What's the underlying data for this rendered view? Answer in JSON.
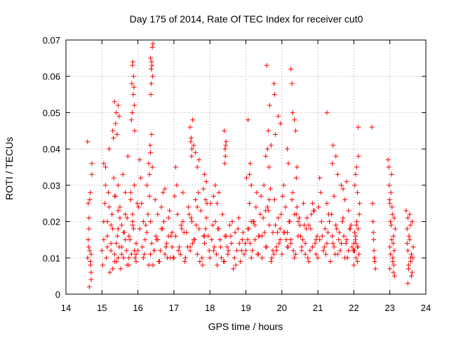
{
  "chart_data": {
    "type": "scatter",
    "title": "Day 175 of 2014, Rate Of TEC Index for receiver cut0",
    "xlabel": "GPS time / hours",
    "ylabel": "ROTI / TECUs",
    "xlim": [
      14,
      24
    ],
    "ylim": [
      0,
      0.07
    ],
    "xticks": [
      "14",
      "15",
      "16",
      "17",
      "18",
      "19",
      "20",
      "21",
      "22",
      "23",
      "24"
    ],
    "yticks": [
      "0",
      "0.01",
      "0.02",
      "0.03",
      "0.04",
      "0.05",
      "0.06",
      "0.07"
    ],
    "grid": true,
    "legend": "none",
    "marker": "plus",
    "color": "#ff0000",
    "series": [
      {
        "name": "ROTI",
        "x": [
          14.6,
          14.62,
          14.64,
          14.66,
          14.68,
          14.7,
          14.72,
          14.62,
          14.66,
          14.7,
          14.64,
          14.68,
          14.6,
          14.7,
          14.65,
          14.72,
          14.68,
          14.63,
          15.0,
          15.02,
          15.05,
          15.08,
          15.1,
          15.12,
          15.15,
          15.18,
          15.2,
          15.22,
          15.25,
          15.28,
          15.3,
          15.33,
          15.35,
          15.38,
          15.4,
          15.43,
          15.45,
          15.48,
          15.5,
          15.52,
          15.55,
          15.58,
          15.6,
          15.62,
          15.65,
          15.68,
          15.7,
          15.72,
          15.75,
          15.78,
          15.8,
          15.82,
          15.85,
          15.88,
          15.9,
          15.92,
          15.95,
          15.98,
          15.05,
          15.15,
          15.25,
          15.35,
          15.45,
          15.55,
          15.65,
          15.75,
          15.85,
          15.95,
          15.1,
          15.2,
          15.3,
          15.4,
          15.5,
          15.6,
          15.7,
          15.8,
          15.9,
          15.05,
          15.25,
          15.45,
          15.65,
          15.85,
          15.35,
          15.55,
          15.75,
          15.95,
          15.15,
          15.45,
          15.3,
          15.35,
          15.4,
          15.32,
          15.38,
          15.42,
          15.45,
          15.48,
          15.83,
          15.85,
          15.87,
          15.88,
          15.9,
          15.86,
          15.84,
          15.89,
          15.91,
          15.82,
          16.0,
          16.05,
          16.1,
          16.15,
          16.2,
          16.25,
          16.3,
          16.35,
          16.4,
          16.45,
          16.5,
          16.55,
          16.6,
          16.65,
          16.7,
          16.75,
          16.8,
          16.85,
          16.9,
          16.95,
          16.02,
          16.12,
          16.22,
          16.32,
          16.42,
          16.52,
          16.62,
          16.72,
          16.82,
          16.92,
          16.08,
          16.18,
          16.28,
          16.38,
          16.48,
          16.58,
          16.68,
          16.78,
          16.88,
          16.98,
          16.05,
          16.25,
          16.45,
          16.65,
          16.85,
          16.15,
          16.35,
          16.55,
          16.75,
          16.95,
          16.35,
          16.37,
          16.4,
          16.38,
          16.42,
          16.36,
          16.39,
          16.41,
          16.37,
          16.3,
          16.35,
          16.32,
          16.38,
          16.34,
          17.0,
          17.05,
          17.1,
          17.15,
          17.2,
          17.25,
          17.3,
          17.35,
          17.4,
          17.45,
          17.5,
          17.55,
          17.6,
          17.65,
          17.7,
          17.75,
          17.8,
          17.85,
          17.9,
          17.95,
          17.02,
          17.12,
          17.22,
          17.32,
          17.42,
          17.52,
          17.62,
          17.72,
          17.82,
          17.92,
          17.08,
          17.18,
          17.28,
          17.38,
          17.48,
          17.58,
          17.68,
          17.78,
          17.88,
          17.98,
          17.05,
          17.25,
          17.45,
          17.65,
          17.85,
          17.45,
          17.48,
          17.5,
          17.52,
          17.47,
          17.49,
          17.55,
          17.6,
          17.65,
          17.7,
          17.82,
          17.85,
          17.88,
          17.9,
          18.0,
          18.05,
          18.1,
          18.15,
          18.2,
          18.25,
          18.3,
          18.35,
          18.4,
          18.45,
          18.5,
          18.55,
          18.6,
          18.65,
          18.7,
          18.75,
          18.8,
          18.85,
          18.9,
          18.95,
          18.02,
          18.12,
          18.22,
          18.32,
          18.42,
          18.52,
          18.62,
          18.72,
          18.82,
          18.92,
          18.08,
          18.18,
          18.28,
          18.38,
          18.48,
          18.58,
          18.68,
          18.78,
          18.88,
          18.98,
          18.4,
          18.42,
          18.45,
          18.43,
          18.41,
          18.44,
          18.1,
          18.15,
          18.2,
          18.25,
          19.0,
          19.05,
          19.1,
          19.15,
          19.2,
          19.25,
          19.3,
          19.35,
          19.4,
          19.45,
          19.5,
          19.55,
          19.6,
          19.65,
          19.7,
          19.75,
          19.8,
          19.85,
          19.9,
          19.95,
          19.02,
          19.12,
          19.22,
          19.32,
          19.42,
          19.52,
          19.62,
          19.72,
          19.82,
          19.92,
          19.08,
          19.18,
          19.28,
          19.38,
          19.48,
          19.58,
          19.68,
          19.78,
          19.88,
          19.98,
          19.05,
          19.25,
          19.45,
          19.65,
          19.85,
          19.15,
          19.35,
          19.55,
          19.75,
          19.95,
          19.58,
          19.62,
          19.66,
          19.78,
          19.8,
          19.82,
          19.6,
          19.64,
          19.06,
          19.1,
          19.12,
          19.15,
          19.55,
          19.7,
          19.9,
          19.96,
          20.0,
          20.05,
          20.1,
          20.15,
          20.2,
          20.25,
          20.3,
          20.35,
          20.4,
          20.45,
          20.5,
          20.55,
          20.6,
          20.65,
          20.7,
          20.75,
          20.8,
          20.85,
          20.9,
          20.95,
          20.02,
          20.12,
          20.22,
          20.32,
          20.42,
          20.52,
          20.62,
          20.72,
          20.82,
          20.92,
          20.08,
          20.18,
          20.28,
          20.38,
          20.48,
          20.58,
          20.68,
          20.78,
          20.88,
          20.98,
          20.05,
          20.25,
          20.45,
          20.65,
          20.85,
          20.15,
          20.35,
          20.55,
          20.75,
          20.95,
          20.25,
          20.28,
          20.3,
          20.35,
          20.38,
          20.15,
          20.18,
          20.4,
          20.42,
          21.0,
          21.05,
          21.1,
          21.15,
          21.2,
          21.25,
          21.3,
          21.35,
          21.4,
          21.45,
          21.5,
          21.55,
          21.6,
          21.65,
          21.7,
          21.75,
          21.8,
          21.85,
          21.9,
          21.95,
          21.02,
          21.12,
          21.22,
          21.32,
          21.42,
          21.52,
          21.62,
          21.72,
          21.82,
          21.92,
          21.08,
          21.18,
          21.28,
          21.38,
          21.48,
          21.58,
          21.68,
          21.78,
          21.88,
          21.98,
          21.05,
          21.25,
          21.45,
          21.65,
          21.85,
          21.25,
          21.4,
          21.42,
          21.5,
          21.55,
          21.7,
          21.75,
          21.8,
          22.0,
          22.02,
          22.04,
          22.06,
          22.08,
          22.1,
          22.12,
          22.14,
          22.16,
          22.0,
          22.05,
          22.1,
          22.15,
          22.03,
          22.08,
          22.13,
          22.05,
          22.1,
          22.12,
          22.0,
          22.07,
          22.02,
          22.06,
          22.11,
          22.5,
          22.52,
          22.55,
          22.57,
          22.6,
          22.53,
          22.56,
          22.54,
          22.58,
          22.95,
          22.98,
          23.0,
          23.02,
          23.05,
          23.08,
          23.1,
          23.12,
          23.15,
          22.97,
          23.03,
          23.07,
          23.11,
          23.0,
          23.05,
          23.1,
          23.02,
          23.08,
          23.06,
          23.04,
          23.09,
          23.0,
          23.12,
          22.99,
          23.13,
          23.45,
          23.48,
          23.5,
          23.52,
          23.55,
          23.58,
          23.6,
          23.62,
          23.65,
          23.5,
          23.55,
          23.6,
          23.53,
          23.58,
          23.48,
          23.62,
          23.57,
          23.5,
          23.64,
          23.52
        ],
        "y": [
          0.042,
          0.025,
          0.018,
          0.012,
          0.009,
          0.006,
          0.033,
          0.015,
          0.026,
          0.011,
          0.021,
          0.028,
          0.01,
          0.004,
          0.002,
          0.036,
          0.008,
          0.013,
          0.012,
          0.008,
          0.015,
          0.025,
          0.035,
          0.01,
          0.02,
          0.028,
          0.04,
          0.006,
          0.014,
          0.022,
          0.018,
          0.032,
          0.011,
          0.027,
          0.009,
          0.016,
          0.03,
          0.013,
          0.024,
          0.007,
          0.019,
          0.033,
          0.01,
          0.017,
          0.028,
          0.012,
          0.021,
          0.038,
          0.008,
          0.015,
          0.026,
          0.011,
          0.022,
          0.018,
          0.03,
          0.01,
          0.014,
          0.025,
          0.02,
          0.016,
          0.012,
          0.009,
          0.018,
          0.013,
          0.022,
          0.01,
          0.019,
          0.011,
          0.03,
          0.024,
          0.007,
          0.014,
          0.021,
          0.017,
          0.008,
          0.028,
          0.012,
          0.036,
          0.019,
          0.01,
          0.015,
          0.02,
          0.027,
          0.011,
          0.016,
          0.009,
          0.013,
          0.023,
          0.045,
          0.053,
          0.05,
          0.043,
          0.047,
          0.044,
          0.052,
          0.049,
          0.058,
          0.063,
          0.055,
          0.06,
          0.052,
          0.064,
          0.05,
          0.057,
          0.045,
          0.048,
          0.012,
          0.018,
          0.025,
          0.01,
          0.015,
          0.03,
          0.008,
          0.02,
          0.035,
          0.012,
          0.016,
          0.022,
          0.009,
          0.018,
          0.028,
          0.011,
          0.014,
          0.021,
          0.01,
          0.017,
          0.024,
          0.013,
          0.019,
          0.027,
          0.008,
          0.015,
          0.012,
          0.02,
          0.01,
          0.016,
          0.032,
          0.011,
          0.022,
          0.014,
          0.026,
          0.009,
          0.018,
          0.013,
          0.023,
          0.01,
          0.037,
          0.017,
          0.012,
          0.024,
          0.016,
          0.02,
          0.011,
          0.015,
          0.029,
          0.013,
          0.065,
          0.062,
          0.068,
          0.064,
          0.069,
          0.055,
          0.063,
          0.06,
          0.058,
          0.036,
          0.039,
          0.033,
          0.044,
          0.041,
          0.01,
          0.016,
          0.022,
          0.013,
          0.019,
          0.028,
          0.009,
          0.017,
          0.024,
          0.012,
          0.02,
          0.015,
          0.026,
          0.011,
          0.018,
          0.023,
          0.008,
          0.014,
          0.021,
          0.016,
          0.027,
          0.012,
          0.018,
          0.01,
          0.022,
          0.014,
          0.019,
          0.009,
          0.016,
          0.025,
          0.03,
          0.011,
          0.017,
          0.013,
          0.021,
          0.015,
          0.028,
          0.01,
          0.018,
          0.012,
          0.035,
          0.02,
          0.013,
          0.024,
          0.016,
          0.046,
          0.043,
          0.04,
          0.048,
          0.042,
          0.038,
          0.041,
          0.039,
          0.035,
          0.037,
          0.029,
          0.033,
          0.026,
          0.031,
          0.01,
          0.015,
          0.012,
          0.02,
          0.008,
          0.018,
          0.013,
          0.022,
          0.009,
          0.016,
          0.011,
          0.019,
          0.014,
          0.007,
          0.017,
          0.012,
          0.021,
          0.009,
          0.015,
          0.011,
          0.025,
          0.013,
          0.018,
          0.01,
          0.016,
          0.012,
          0.02,
          0.008,
          0.014,
          0.017,
          0.019,
          0.011,
          0.015,
          0.009,
          0.013,
          0.016,
          0.01,
          0.018,
          0.012,
          0.014,
          0.045,
          0.04,
          0.042,
          0.038,
          0.036,
          0.041,
          0.027,
          0.03,
          0.025,
          0.028,
          0.012,
          0.018,
          0.025,
          0.01,
          0.02,
          0.015,
          0.028,
          0.011,
          0.022,
          0.016,
          0.03,
          0.013,
          0.024,
          0.019,
          0.009,
          0.017,
          0.026,
          0.012,
          0.021,
          0.015,
          0.032,
          0.014,
          0.02,
          0.011,
          0.027,
          0.017,
          0.023,
          0.01,
          0.019,
          0.014,
          0.018,
          0.012,
          0.024,
          0.016,
          0.021,
          0.013,
          0.029,
          0.011,
          0.017,
          0.022,
          0.015,
          0.019,
          0.01,
          0.026,
          0.013,
          0.02,
          0.016,
          0.023,
          0.012,
          0.018,
          0.063,
          0.045,
          0.052,
          0.058,
          0.055,
          0.044,
          0.04,
          0.035,
          0.048,
          0.033,
          0.036,
          0.03,
          0.038,
          0.041,
          0.049,
          0.047,
          0.011,
          0.017,
          0.024,
          0.013,
          0.02,
          0.015,
          0.028,
          0.01,
          0.022,
          0.016,
          0.019,
          0.012,
          0.025,
          0.014,
          0.021,
          0.009,
          0.018,
          0.013,
          0.023,
          0.011,
          0.027,
          0.015,
          0.02,
          0.012,
          0.024,
          0.016,
          0.019,
          0.01,
          0.022,
          0.014,
          0.017,
          0.013,
          0.026,
          0.011,
          0.021,
          0.015,
          0.018,
          0.012,
          0.023,
          0.016,
          0.03,
          0.014,
          0.02,
          0.011,
          0.025,
          0.017,
          0.022,
          0.013,
          0.019,
          0.015,
          0.062,
          0.058,
          0.05,
          0.048,
          0.045,
          0.04,
          0.036,
          0.032,
          0.035,
          0.01,
          0.015,
          0.02,
          0.012,
          0.018,
          0.014,
          0.022,
          0.009,
          0.016,
          0.013,
          0.019,
          0.011,
          0.017,
          0.014,
          0.021,
          0.01,
          0.015,
          0.012,
          0.018,
          0.013,
          0.024,
          0.016,
          0.011,
          0.02,
          0.014,
          0.018,
          0.012,
          0.016,
          0.01,
          0.019,
          0.028,
          0.013,
          0.017,
          0.022,
          0.011,
          0.015,
          0.02,
          0.014,
          0.018,
          0.012,
          0.032,
          0.025,
          0.027,
          0.03,
          0.023,
          0.05,
          0.036,
          0.041,
          0.038,
          0.033,
          0.029,
          0.026,
          0.031,
          0.008,
          0.012,
          0.015,
          0.01,
          0.02,
          0.013,
          0.018,
          0.011,
          0.025,
          0.014,
          0.016,
          0.009,
          0.022,
          0.03,
          0.035,
          0.038,
          0.033,
          0.028,
          0.046,
          0.012,
          0.019,
          0.017,
          0.014,
          0.013,
          0.046,
          0.025,
          0.015,
          0.01,
          0.007,
          0.02,
          0.012,
          0.017,
          0.009,
          0.037,
          0.03,
          0.025,
          0.02,
          0.015,
          0.01,
          0.006,
          0.012,
          0.018,
          0.035,
          0.028,
          0.022,
          0.008,
          0.013,
          0.033,
          0.016,
          0.011,
          0.009,
          0.024,
          0.019,
          0.014,
          0.007,
          0.021,
          0.026,
          0.005,
          0.023,
          0.018,
          0.012,
          0.008,
          0.015,
          0.01,
          0.005,
          0.02,
          0.013,
          0.003,
          0.022,
          0.011,
          0.016,
          0.009,
          0.014,
          0.006,
          0.019,
          0.021,
          0.01,
          0.007
        ]
      }
    ]
  }
}
